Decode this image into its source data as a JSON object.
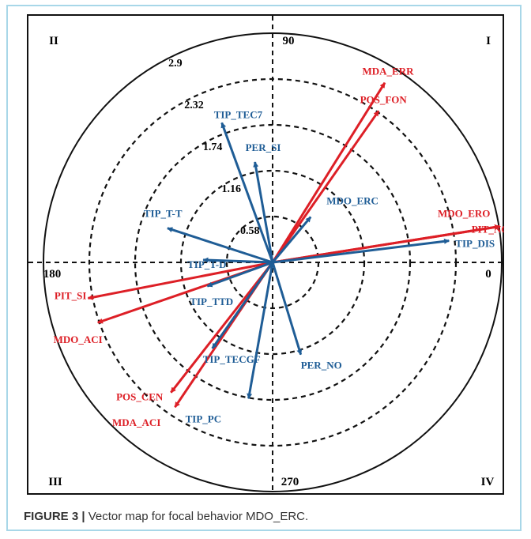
{
  "chart_data": {
    "type": "polar-vector",
    "quadrant_labels": [
      "I",
      "II",
      "III",
      "IV"
    ],
    "angle_labels": [
      "90",
      "180",
      "270",
      "0"
    ],
    "radius_labels": [
      0.58,
      1.16,
      1.74,
      2.32,
      2.9
    ],
    "rlim": [
      0,
      2.9
    ],
    "series": [
      {
        "color": "#dd1f26",
        "vectors": [
          {
            "label": "MDA_ERR",
            "angle": 58,
            "radius": 2.68
          },
          {
            "label": "POS_FON",
            "angle": 55,
            "radius": 2.34
          },
          {
            "label": "MDO_ERO",
            "angle": 9,
            "radius": 2.91
          },
          {
            "label": "PIT_NO",
            "angle": 9,
            "radius": 2.91
          },
          {
            "label": "PIT_SI",
            "angle": 191,
            "radius": 2.38
          },
          {
            "label": "MDO_ACI",
            "angle": 199,
            "radius": 2.34
          },
          {
            "label": "POS_CEN",
            "angle": 232,
            "radius": 2.09
          },
          {
            "label": "MDA_ACI",
            "angle": 236,
            "radius": 2.21
          }
        ]
      },
      {
        "color": "#1f5d96",
        "vectors": [
          {
            "label": "TIP_TEC7",
            "angle": 110,
            "radius": 1.88
          },
          {
            "label": "PER_SI",
            "angle": 100,
            "radius": 1.29
          },
          {
            "label": "MDO_ERC",
            "angle": 50,
            "radius": 0.75
          },
          {
            "label": "TIP_DIS",
            "angle": 7,
            "radius": 2.25
          },
          {
            "label": "TIP_T-T",
            "angle": 162,
            "radius": 1.4
          },
          {
            "label": "TIP_T-D",
            "angle": 178,
            "radius": 0.88
          },
          {
            "label": "TIP_TTD",
            "angle": 200,
            "radius": 0.88
          },
          {
            "label": "TIP_TECGF",
            "angle": 235,
            "radius": 1.33
          },
          {
            "label": "PER_NO",
            "angle": 287,
            "radius": 1.22
          },
          {
            "label": "TIP_PC",
            "angle": 260,
            "radius": 1.75
          }
        ]
      }
    ]
  },
  "caption": {
    "label": "FIGURE 3 |",
    "text": " Vector map for focal behavior MDO_ERC."
  }
}
